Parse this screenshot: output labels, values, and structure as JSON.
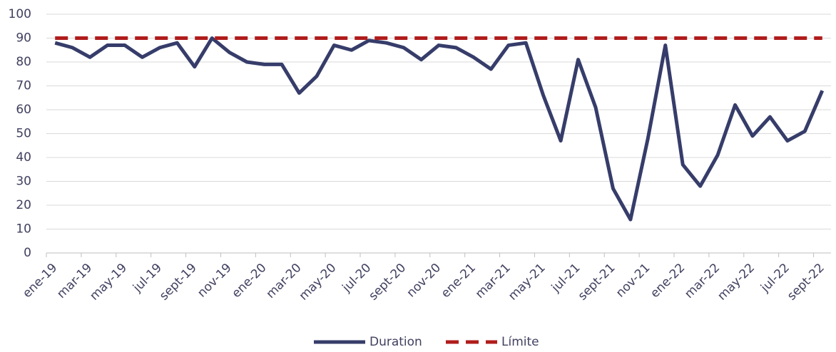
{
  "chart_data": {
    "type": "line",
    "categories": [
      "ene-19",
      null,
      "mar-19",
      null,
      "may-19",
      null,
      "jul-19",
      null,
      "sept-19",
      null,
      "nov-19",
      null,
      "ene-20",
      null,
      "mar-20",
      null,
      "may-20",
      null,
      "jul-20",
      null,
      "sept-20",
      null,
      "nov-20",
      null,
      "ene-21",
      null,
      "mar-21",
      null,
      "may-21",
      null,
      "jul-21",
      null,
      "sept-21",
      null,
      "nov-21",
      null,
      "ene-22",
      null,
      "mar-22",
      null,
      "may-22",
      null,
      "jul-22",
      null,
      "sept-22"
    ],
    "series": [
      {
        "name": "Duration",
        "color": "#363d6a",
        "dashed": false,
        "values": [
          88,
          86,
          82,
          87,
          87,
          82,
          86,
          88,
          78,
          90,
          84,
          80,
          79,
          79,
          67,
          74,
          87,
          85,
          89,
          88,
          86,
          81,
          87,
          86,
          82,
          77,
          87,
          88,
          66,
          47,
          81,
          61,
          27,
          14,
          48,
          87,
          37,
          28,
          41,
          62,
          49,
          57,
          47,
          51,
          68
        ]
      },
      {
        "name": "Límite",
        "color": "#b01c1c",
        "dashed": true,
        "values": [
          90,
          90,
          90,
          90,
          90,
          90,
          90,
          90,
          90,
          90,
          90,
          90,
          90,
          90,
          90,
          90,
          90,
          90,
          90,
          90,
          90,
          90,
          90,
          90,
          90,
          90,
          90,
          90,
          90,
          90,
          90,
          90,
          90,
          90,
          90,
          90,
          90,
          90,
          90,
          90,
          90,
          90,
          90,
          90,
          90
        ]
      }
    ],
    "ylim": [
      0,
      100
    ],
    "yticks": [
      0,
      10,
      20,
      30,
      40,
      50,
      60,
      70,
      80,
      90,
      100
    ],
    "grid": true,
    "legend": "bottom"
  }
}
